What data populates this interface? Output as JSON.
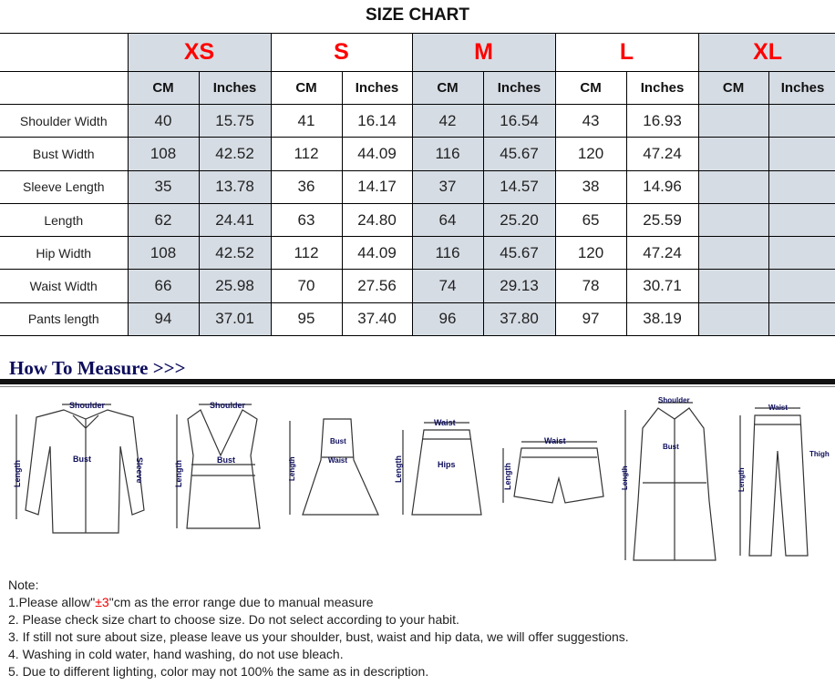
{
  "title": "SIZE CHART",
  "sizes": [
    "XS",
    "S",
    "M",
    "L",
    "XL"
  ],
  "units": [
    "CM",
    "Inches"
  ],
  "rows": [
    {
      "label": "Shoulder Width",
      "values": [
        "40",
        "15.75",
        "41",
        "16.14",
        "42",
        "16.54",
        "43",
        "16.93",
        "",
        ""
      ]
    },
    {
      "label": "Bust Width",
      "values": [
        "108",
        "42.52",
        "112",
        "44.09",
        "116",
        "45.67",
        "120",
        "47.24",
        "",
        ""
      ]
    },
    {
      "label": "Sleeve Length",
      "values": [
        "35",
        "13.78",
        "36",
        "14.17",
        "37",
        "14.57",
        "38",
        "14.96",
        "",
        ""
      ]
    },
    {
      "label": "Length",
      "values": [
        "62",
        "24.41",
        "63",
        "24.80",
        "64",
        "25.20",
        "65",
        "25.59",
        "",
        ""
      ]
    },
    {
      "label": "Hip Width",
      "values": [
        "108",
        "42.52",
        "112",
        "44.09",
        "116",
        "45.67",
        "120",
        "47.24",
        "",
        ""
      ]
    },
    {
      "label": "Waist Width",
      "values": [
        "66",
        "25.98",
        "70",
        "27.56",
        "74",
        "29.13",
        "78",
        "30.71",
        "",
        ""
      ]
    },
    {
      "label": "Pants length",
      "values": [
        "94",
        "37.01",
        "95",
        "37.40",
        "96",
        "37.80",
        "97",
        "38.19",
        "",
        ""
      ]
    }
  ],
  "colors": {
    "size_label": "#ff0000",
    "shaded_column": "#d6dce4",
    "heading": "#0d0d5c"
  },
  "how_to_measure": "How To Measure >>>",
  "figure_labels": {
    "shoulder": "Shoulder",
    "bust": "Bust",
    "sleeve": "Sleeve",
    "length": "Length",
    "waist": "Waist",
    "hips": "Hips",
    "thigh": "Thigh"
  },
  "notes": {
    "heading": "Note:",
    "n1_pre": "1.Please allow\"",
    "n1_red": "±3",
    "n1_post": "\"cm as the error range due to manual measure",
    "n2": "2. Please check size chart to choose size. Do not select according to your habit.",
    "n3": "3. If still not sure about size, please leave us your shoulder, bust, waist and hip data, we will offer suggestions.",
    "n4": "4. Washing in cold water, hand washing, do not use bleach.",
    "n5": "5. Due to different lighting, color may not 100% the same as in description."
  }
}
